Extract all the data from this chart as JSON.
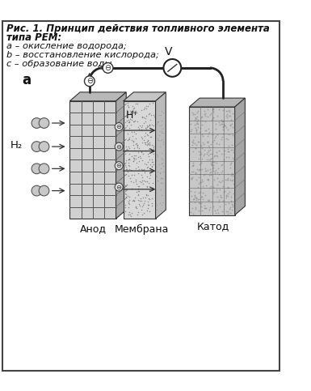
{
  "title_line1": "Рис. 1. Принцип действия топливного элемента",
  "title_line2": "типа РЕМ:",
  "subtitle_a": "a – окисление водорода;",
  "subtitle_b": "b – восстановление кислорода;",
  "subtitle_c": "c – образование воды",
  "label_a": "a",
  "label_V": "V",
  "label_H2": "H₂",
  "label_Hplus": "H⁺",
  "label_anode": "Анод",
  "label_membrane": "Мембрана",
  "label_cathode": "Катод",
  "text_color": "#111111",
  "wire_color": "#222222",
  "anode_front_color": "#d0d0d0",
  "anode_top_color": "#b8b8b8",
  "anode_side_color": "#a8a8a8",
  "membrane_front_color": "#d8d8d8",
  "membrane_top_color": "#c5c5c5",
  "membrane_side_color": "#bbbbbb",
  "cathode_front_color": "#c8c8c8",
  "cathode_top_color": "#b5b5b5",
  "cathode_side_color": "#a5a5a5"
}
